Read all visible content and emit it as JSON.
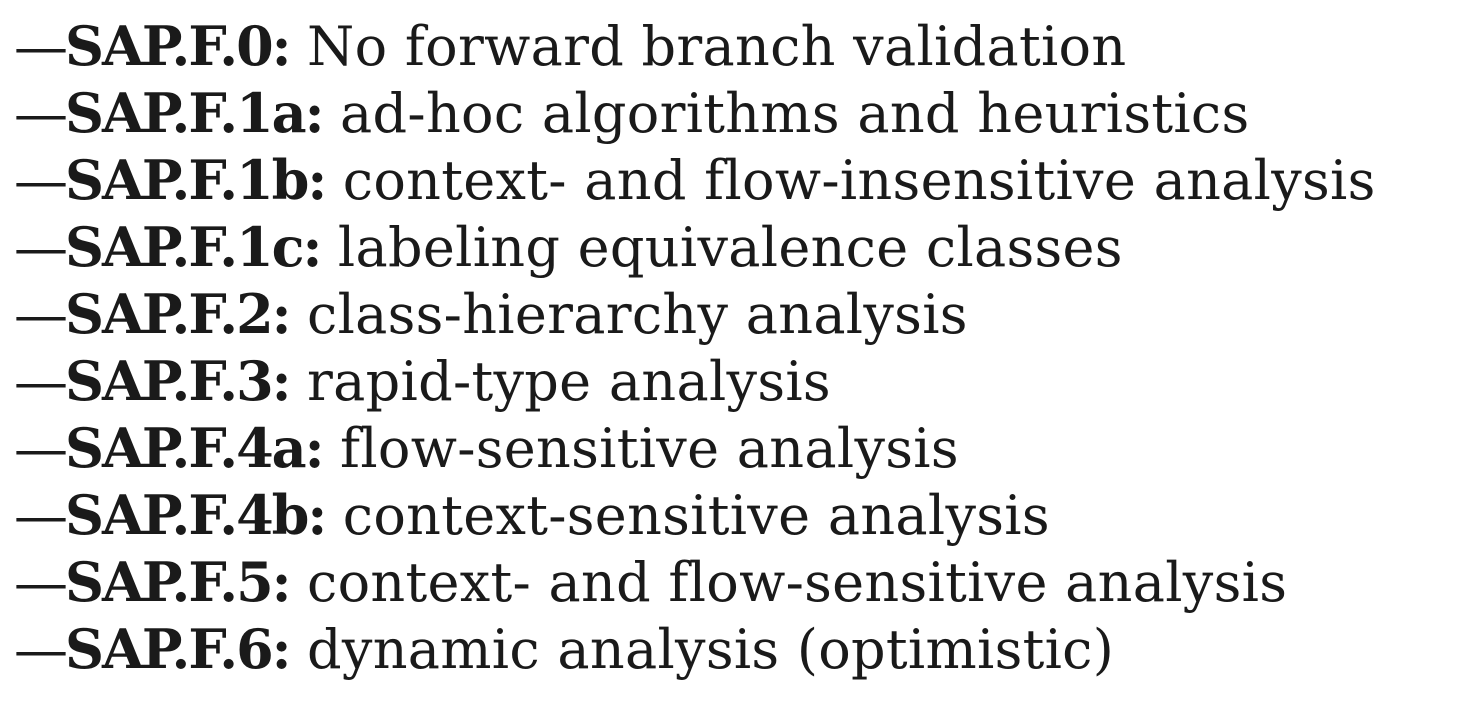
{
  "items": [
    {
      "dash": "—",
      "code": "SAP.F.0:",
      "desc": " No forward branch validation"
    },
    {
      "dash": "—",
      "code": "SAP.F.1a:",
      "desc": " ad-hoc algorithms and heuristics"
    },
    {
      "dash": "—",
      "code": "SAP.F.1b:",
      "desc": " context- and flow-insensitive analysis"
    },
    {
      "dash": "—",
      "code": "SAP.F.1c:",
      "desc": " labeling equivalence classes"
    },
    {
      "dash": "—",
      "code": "SAP.F.2:",
      "desc": " class-hierarchy analysis"
    },
    {
      "dash": "—",
      "code": "SAP.F.3:",
      "desc": " rapid-type analysis"
    },
    {
      "dash": "—",
      "code": "SAP.F.4a:",
      "desc": " flow-sensitive analysis"
    },
    {
      "dash": "—",
      "code": "SAP.F.4b:",
      "desc": " context-sensitive analysis"
    },
    {
      "dash": "—",
      "code": "SAP.F.5:",
      "desc": " context- and flow-sensitive analysis"
    },
    {
      "dash": "—",
      "code": "SAP.F.6:",
      "desc": " dynamic analysis (optimistic)"
    }
  ]
}
